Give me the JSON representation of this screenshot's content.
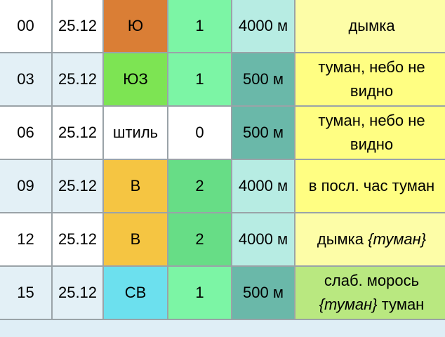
{
  "rows": [
    {
      "hour": "00",
      "date": "25.12",
      "wind_dir": "Ю",
      "wind_color": "#da7e35",
      "wind_speed": "1",
      "speed_color": "#7cf5a5",
      "visibility": "4000 м",
      "vis_color": "#b7ece3",
      "desc_before": "дымка",
      "desc_italic": "",
      "desc_after": "",
      "desc_color": "#fdfda7"
    },
    {
      "hour": "03",
      "date": "25.12",
      "wind_dir": "ЮЗ",
      "wind_color": "#7de453",
      "wind_speed": "1",
      "speed_color": "#7cf5a5",
      "visibility": "500 м",
      "vis_color": "#6ab8a9",
      "desc_before": "туман, небо не видно",
      "desc_italic": "",
      "desc_after": "",
      "desc_color": "#fffe82"
    },
    {
      "hour": "06",
      "date": "25.12",
      "wind_dir": "штиль",
      "wind_color": "#ffffff",
      "wind_speed": "0",
      "speed_color": "#ffffff",
      "visibility": "500 м",
      "vis_color": "#6ab8a9",
      "desc_before": "туман, небо не видно",
      "desc_italic": "",
      "desc_after": "",
      "desc_color": "#fffe82"
    },
    {
      "hour": "09",
      "date": "25.12",
      "wind_dir": "В",
      "wind_color": "#f5c542",
      "wind_speed": "2",
      "speed_color": "#67dd86",
      "visibility": "4000 м",
      "vis_color": "#b7ece3",
      "desc_before": "в посл. час туман",
      "desc_italic": "",
      "desc_after": "",
      "desc_color": "#fffe82"
    },
    {
      "hour": "12",
      "date": "25.12",
      "wind_dir": "В",
      "wind_color": "#f5c542",
      "wind_speed": "2",
      "speed_color": "#67dd86",
      "visibility": "4000 м",
      "vis_color": "#b7ece3",
      "desc_before": "дымка ",
      "desc_italic": "{туман}",
      "desc_after": "",
      "desc_color": "#fdfda7"
    },
    {
      "hour": "15",
      "date": "25.12",
      "wind_dir": "СВ",
      "wind_color": "#6ce0ee",
      "wind_speed": "1",
      "speed_color": "#7cf5a5",
      "visibility": "500 м",
      "vis_color": "#6ab8a9",
      "desc_before": "слаб. морось ",
      "desc_italic": "{туман}",
      "desc_after": " туман",
      "desc_color": "#b9e880"
    }
  ]
}
